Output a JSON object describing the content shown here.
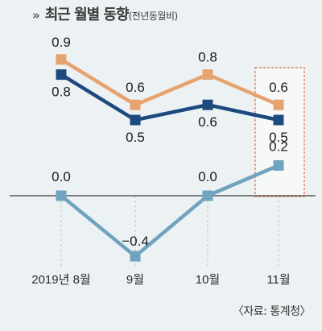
{
  "header": {
    "title": "최근 월별 동향",
    "subtitle": "(전년동월비)"
  },
  "footer": {
    "source": "〈자료: 통계청〉"
  },
  "colors": {
    "background": "#ecf2f3",
    "series_orange": "#e6a26f",
    "series_navy": "#1c4a7e",
    "series_teal": "#6fa3be",
    "highlight_box": "#e36b4b"
  },
  "chart_data": {
    "type": "line",
    "categories": [
      "2019년 8월",
      "9월",
      "10월",
      "11월"
    ],
    "series": [
      {
        "values": [
          0.9,
          0.6,
          0.8,
          0.6
        ],
        "labels": [
          "0.9",
          "0.6",
          "0.8",
          "0.6"
        ]
      },
      {
        "values": [
          0.8,
          0.5,
          0.6,
          0.5
        ],
        "labels": [
          "0.8",
          "0.5",
          "0.6",
          "0.5"
        ]
      },
      {
        "values": [
          0.0,
          -0.4,
          0.0,
          0.2
        ],
        "labels": [
          "0.0",
          "−0.4",
          "0.0",
          "0.2"
        ]
      }
    ],
    "highlight_category": "11월",
    "title": "",
    "xlabel": "",
    "ylabel": "",
    "grid": false
  }
}
